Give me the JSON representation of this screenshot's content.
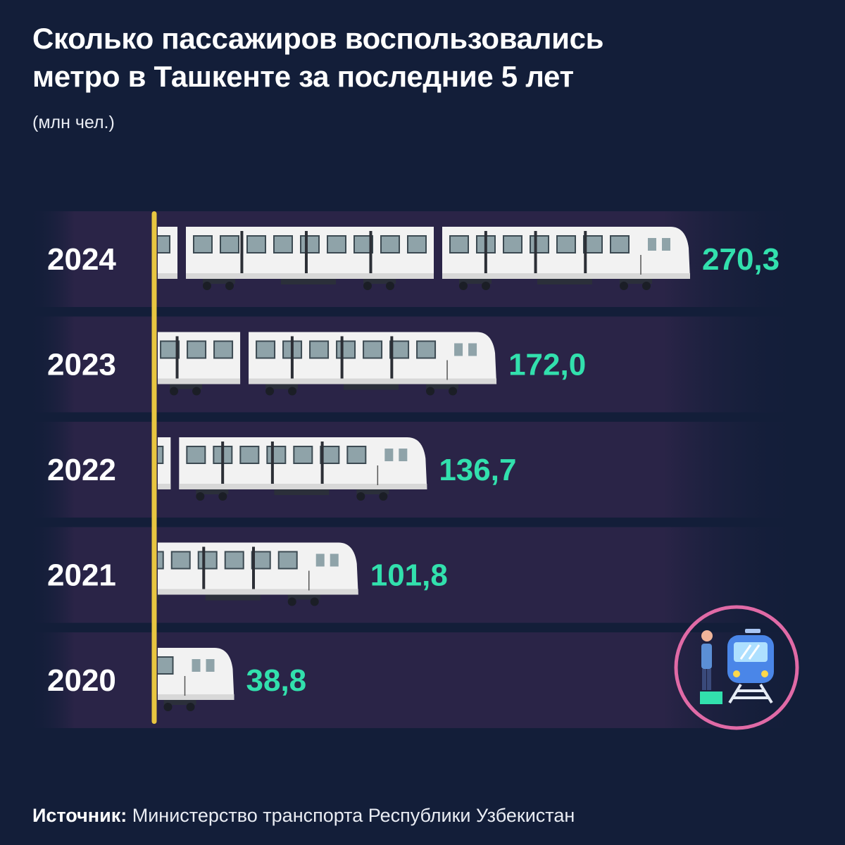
{
  "title": {
    "line1": "Сколько пассажиров воспользовались",
    "line2": "метро в Ташкенте за последние 5 лет"
  },
  "unit": "(млн чел.)",
  "source": {
    "label": "Источник",
    "text": "Министерство транспорта Республики Узбекистан"
  },
  "icons": [
    "passenger-figure-icon",
    "train-icon",
    "rail-track-icon"
  ],
  "colors": {
    "background": "#131e39",
    "row_band": "#2a2447",
    "axis": "#e8c640",
    "value": "#32e0ad",
    "train_body": "#f2f2f2",
    "icon_ring": "#e06aa6",
    "icon_train": "#4a86e8"
  },
  "chart_data": {
    "type": "bar",
    "orientation": "horizontal",
    "categories": [
      "2024",
      "2023",
      "2022",
      "2021",
      "2020"
    ],
    "values": [
      270.3,
      172.0,
      136.7,
      101.8,
      38.8
    ],
    "value_labels": [
      "270,3",
      "172,0",
      "136,7",
      "101,8",
      "38,8"
    ],
    "xlim": [
      0,
      280
    ]
  }
}
